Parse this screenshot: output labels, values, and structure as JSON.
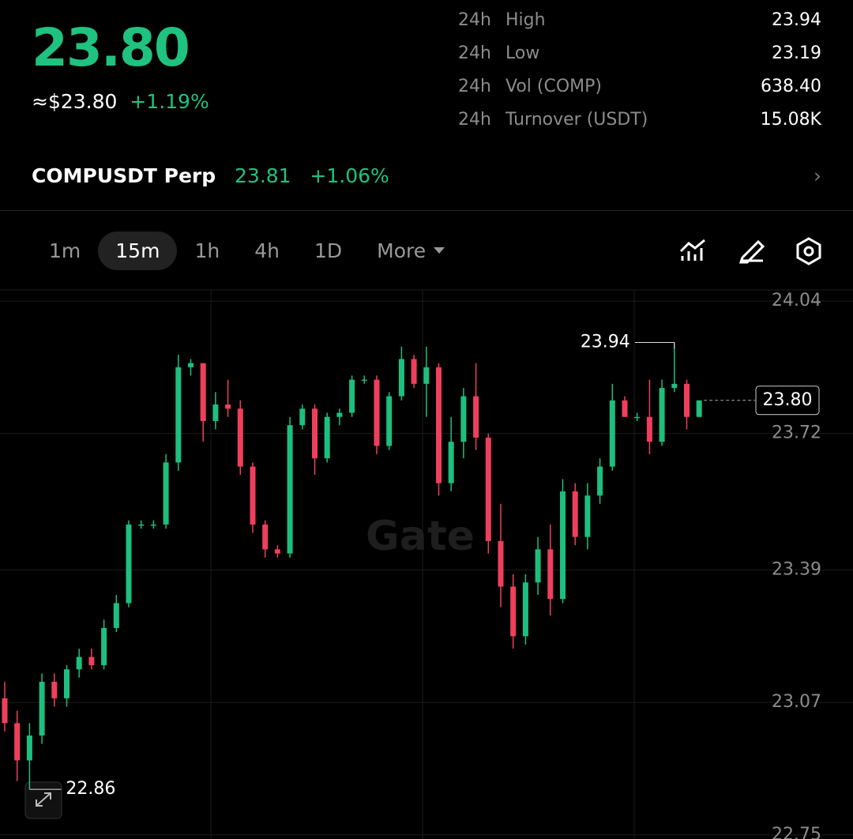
{
  "header": {
    "price": "23.80",
    "fiat": "≈$23.80",
    "change": "+1.19%",
    "stats": [
      {
        "period": "24h",
        "label": "High",
        "value": "23.94"
      },
      {
        "period": "24h",
        "label": "Low",
        "value": "23.19"
      },
      {
        "period": "24h",
        "label": "Vol (COMP)",
        "value": "638.40"
      },
      {
        "period": "24h",
        "label": "Turnover (USDT)",
        "value": "15.08K"
      }
    ]
  },
  "perp": {
    "name": "COMPUSDT Perp",
    "price": "23.81",
    "change": "+1.06%"
  },
  "toolbar": {
    "intervals": [
      "1m",
      "15m",
      "1h",
      "4h",
      "1D"
    ],
    "active": 1,
    "more": "More"
  },
  "watermark": "Gate",
  "chart_data": {
    "type": "candlestick",
    "up_color": "#1dbf7e",
    "down_color": "#ef3f5c",
    "open": [
      23.08,
      23.02,
      22.93,
      22.99,
      23.12,
      23.08,
      23.15,
      23.18,
      23.16,
      23.25,
      23.31,
      23.5,
      23.5,
      23.5,
      23.65,
      23.88,
      23.89,
      23.75,
      23.79,
      23.78,
      23.64,
      23.5,
      23.44,
      23.43,
      23.74,
      23.78,
      23.66,
      23.76,
      23.77,
      23.85,
      23.85,
      23.69,
      23.81,
      23.9,
      23.84,
      23.88,
      23.6,
      23.7,
      23.81,
      23.71,
      23.46,
      23.35,
      23.23,
      23.36,
      23.44,
      23.32,
      23.58,
      23.47,
      23.57,
      23.64,
      23.8,
      23.76,
      23.76,
      23.7,
      23.83,
      23.84,
      23.76
    ],
    "high": [
      23.12,
      23.05,
      23.02,
      23.14,
      23.14,
      23.16,
      23.2,
      23.2,
      23.27,
      23.33,
      23.51,
      23.51,
      23.51,
      23.67,
      23.91,
      23.9,
      23.89,
      23.82,
      23.85,
      23.8,
      23.65,
      23.51,
      23.45,
      23.76,
      23.79,
      23.79,
      23.77,
      23.78,
      23.86,
      23.86,
      23.86,
      23.82,
      23.93,
      23.91,
      23.93,
      23.89,
      23.76,
      23.83,
      23.89,
      23.72,
      23.55,
      23.38,
      23.38,
      23.47,
      23.5,
      23.61,
      23.6,
      23.6,
      23.66,
      23.84,
      23.81,
      23.77,
      23.85,
      23.85,
      23.94,
      23.85,
      23.8
    ],
    "low": [
      23.0,
      22.88,
      22.86,
      22.97,
      23.06,
      23.06,
      23.13,
      23.15,
      23.15,
      23.24,
      23.3,
      23.49,
      23.49,
      23.49,
      23.63,
      23.86,
      23.7,
      23.73,
      23.76,
      23.62,
      23.48,
      23.42,
      23.42,
      23.42,
      23.73,
      23.62,
      23.65,
      23.74,
      23.76,
      23.84,
      23.67,
      23.68,
      23.8,
      23.83,
      23.76,
      23.57,
      23.58,
      23.66,
      23.68,
      23.43,
      23.3,
      23.2,
      23.21,
      23.33,
      23.28,
      23.31,
      23.45,
      23.44,
      23.55,
      23.63,
      23.76,
      23.75,
      23.67,
      23.69,
      23.82,
      23.73,
      23.76
    ],
    "close": [
      23.02,
      22.93,
      22.99,
      23.12,
      23.08,
      23.15,
      23.18,
      23.16,
      23.25,
      23.31,
      23.5,
      23.5,
      23.5,
      23.65,
      23.88,
      23.89,
      23.75,
      23.79,
      23.78,
      23.64,
      23.5,
      23.44,
      23.43,
      23.74,
      23.78,
      23.66,
      23.76,
      23.77,
      23.85,
      23.85,
      23.69,
      23.81,
      23.9,
      23.84,
      23.88,
      23.6,
      23.7,
      23.81,
      23.71,
      23.46,
      23.35,
      23.23,
      23.36,
      23.44,
      23.32,
      23.58,
      23.47,
      23.57,
      23.64,
      23.8,
      23.76,
      23.76,
      23.7,
      23.83,
      23.84,
      23.76,
      23.8
    ],
    "ylim": [
      22.74,
      24.065
    ],
    "yticks": [
      24.04,
      23.72,
      23.39,
      23.07,
      22.75
    ],
    "annotations": [
      {
        "label": "23.94",
        "value": 23.94,
        "index": 54
      },
      {
        "label": "22.86",
        "value": 22.86,
        "index": 2
      }
    ],
    "last_price": {
      "label": "23.80",
      "value": 23.8
    }
  }
}
